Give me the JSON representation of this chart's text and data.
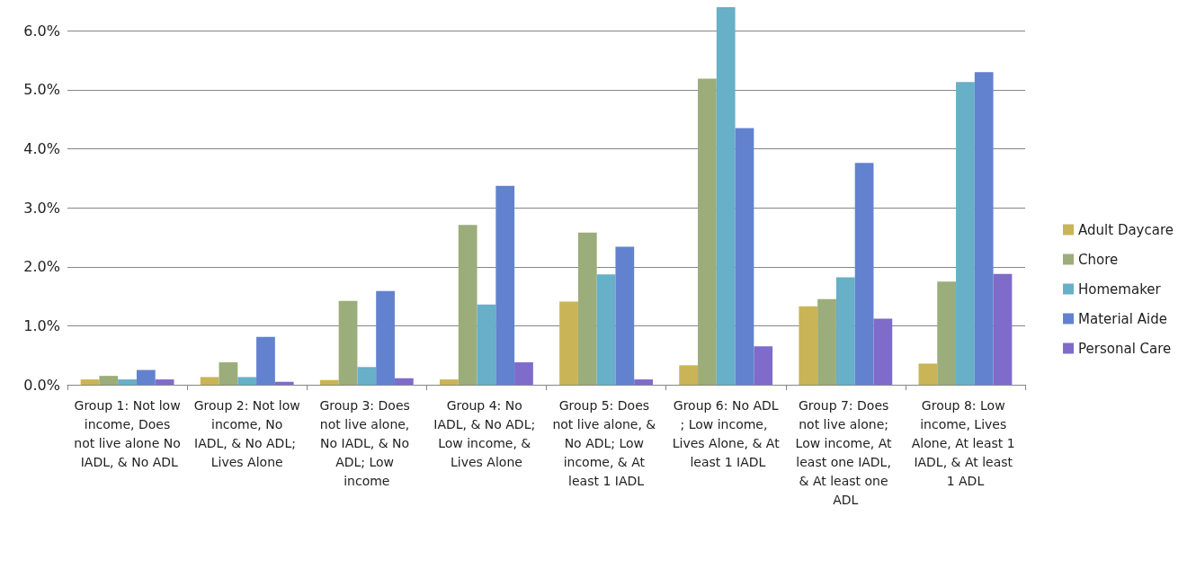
{
  "chart_data": {
    "type": "bar",
    "categories": [
      "Group 1: Not low income, Does not live alone No IADL, & No ADL",
      "Group 2: Not low income, No IADL, & No ADL; Lives Alone",
      "Group 3: Does not live alone, No IADL, & No ADL; Low income",
      "Group 4: No IADL, & No ADL; Low income, & Lives Alone",
      "Group 5: Does not live alone, & No ADL; Low income, & At least 1 IADL",
      "Group 6: No ADL; Low income, Lives Alone, & At least 1 IADL",
      "Group 7: Does not live alone; Low income, At least one IADL, & At least one ADL",
      "Group 8: Low income, Lives Alone, At least 1 IADL, & At least 1 ADL"
    ],
    "series": [
      {
        "name": "Adult Daycare",
        "color": "#c9b458",
        "values": [
          0.09,
          0.13,
          0.08,
          0.09,
          1.41,
          0.33,
          1.33,
          0.36
        ]
      },
      {
        "name": "Chore",
        "color": "#9bad7a",
        "values": [
          0.15,
          0.38,
          1.42,
          2.71,
          2.58,
          5.19,
          1.45,
          1.75
        ]
      },
      {
        "name": "Homemaker",
        "color": "#68afc8",
        "values": [
          0.09,
          0.13,
          0.3,
          1.36,
          1.87,
          6.4,
          1.82,
          5.13
        ]
      },
      {
        "name": "Material Aide",
        "color": "#6282cf",
        "values": [
          0.25,
          0.81,
          1.59,
          3.37,
          2.34,
          4.35,
          3.76,
          5.3
        ]
      },
      {
        "name": "Personal Care",
        "color": "#7f6bc9",
        "values": [
          0.09,
          0.05,
          0.11,
          0.38,
          0.09,
          0.65,
          1.12,
          1.88
        ]
      }
    ],
    "ylim": [
      0,
      6.4
    ],
    "yticks": [
      {
        "value": 0,
        "label": "0.0%"
      },
      {
        "value": 1,
        "label": "1.0%"
      },
      {
        "value": 2,
        "label": "2.0%"
      },
      {
        "value": 3,
        "label": "3.0%"
      },
      {
        "value": 4,
        "label": "4.0%"
      },
      {
        "value": 5,
        "label": "5.0%"
      },
      {
        "value": 6,
        "label": "6.0%"
      }
    ],
    "grid": "y",
    "legend": "right"
  }
}
